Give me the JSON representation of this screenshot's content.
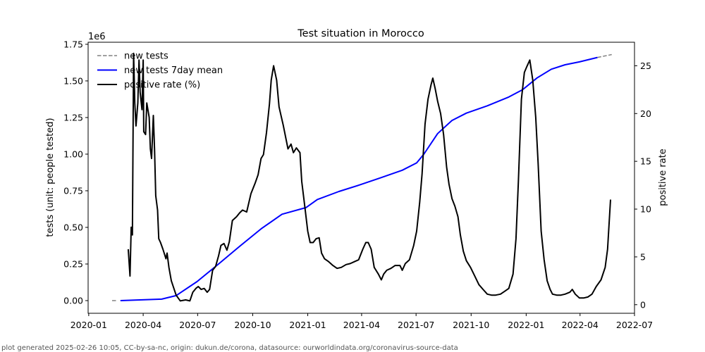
{
  "chart_data": {
    "type": "line",
    "title": "Test situation in Morocco",
    "xlabel": "",
    "ylabel_left": "tests (unit: people tested)",
    "ylabel_right": "positive rate",
    "left_offset_label": "1e6",
    "x_unit": "days since 2020-01-01",
    "xlim_days": [
      -1,
      912
    ],
    "ylim_left": [
      -0.0865,
      1.764
    ],
    "ylim_right": [
      -0.9,
      27.46
    ],
    "x_ticks": [
      {
        "label": "2020-01",
        "day": 0
      },
      {
        "label": "2020-04",
        "day": 91
      },
      {
        "label": "2020-07",
        "day": 182
      },
      {
        "label": "2020-10",
        "day": 274
      },
      {
        "label": "2021-01",
        "day": 366
      },
      {
        "label": "2021-04",
        "day": 456
      },
      {
        "label": "2021-07",
        "day": 547
      },
      {
        "label": "2021-10",
        "day": 639
      },
      {
        "label": "2022-01",
        "day": 731
      },
      {
        "label": "2022-04",
        "day": 821
      },
      {
        "label": "2022-07",
        "day": 912
      }
    ],
    "y_ticks_left": [
      {
        "label": "0.00",
        "value": 0
      },
      {
        "label": "0.25",
        "value": 0.25
      },
      {
        "label": "0.50",
        "value": 0.5
      },
      {
        "label": "0.75",
        "value": 0.75
      },
      {
        "label": "1.00",
        "value": 1.0
      },
      {
        "label": "1.25",
        "value": 1.25
      },
      {
        "label": "1.50",
        "value": 1.5
      },
      {
        "label": "1.75",
        "value": 1.75
      }
    ],
    "y_ticks_right": [
      {
        "label": "0",
        "value": 0
      },
      {
        "label": "5",
        "value": 5
      },
      {
        "label": "10",
        "value": 10
      },
      {
        "label": "15",
        "value": 15
      },
      {
        "label": "20",
        "value": 20
      },
      {
        "label": "25",
        "value": 25
      }
    ],
    "legend_position": "top-left",
    "series": [
      {
        "name": "new tests",
        "axis": "left",
        "color": "#808080",
        "style": "dashed",
        "segments": [
          [
            [
              39,
              0
            ],
            [
              48,
              0
            ]
          ],
          [
            [
              850,
              1.66
            ],
            [
              874,
              1.68
            ]
          ]
        ]
      },
      {
        "name": "new tests 7day mean",
        "axis": "left",
        "color": "#0000ff",
        "style": "solid",
        "points": [
          [
            53,
            0
          ],
          [
            122,
            0.01
          ],
          [
            146,
            0.034
          ],
          [
            181,
            0.13
          ],
          [
            217,
            0.25
          ],
          [
            252,
            0.37
          ],
          [
            288,
            0.49
          ],
          [
            323,
            0.59
          ],
          [
            363,
            0.635
          ],
          [
            382,
            0.69
          ],
          [
            418,
            0.745
          ],
          [
            453,
            0.79
          ],
          [
            489,
            0.84
          ],
          [
            524,
            0.89
          ],
          [
            548,
            0.94
          ],
          [
            560,
            1.0
          ],
          [
            583,
            1.14
          ],
          [
            607,
            1.23
          ],
          [
            631,
            1.28
          ],
          [
            666,
            1.33
          ],
          [
            702,
            1.39
          ],
          [
            725,
            1.44
          ],
          [
            749,
            1.52
          ],
          [
            773,
            1.58
          ],
          [
            796,
            1.61
          ],
          [
            820,
            1.63
          ],
          [
            850,
            1.66
          ]
        ]
      },
      {
        "name": "positive rate (%)",
        "axis": "right",
        "color": "#000000",
        "style": "solid",
        "points": [
          [
            66,
            5.8
          ],
          [
            69,
            3.0
          ],
          [
            71,
            8.1
          ],
          [
            73,
            7.3
          ],
          [
            75,
            26.3
          ],
          [
            77,
            21.1
          ],
          [
            79,
            18.7
          ],
          [
            82,
            21.1
          ],
          [
            84,
            25.6
          ],
          [
            86,
            22.2
          ],
          [
            89,
            20.4
          ],
          [
            91,
            25.6
          ],
          [
            92,
            18.1
          ],
          [
            95,
            17.8
          ],
          [
            97,
            21.1
          ],
          [
            101,
            19.6
          ],
          [
            103,
            16.3
          ],
          [
            105,
            15.3
          ],
          [
            108,
            19.8
          ],
          [
            110,
            16.3
          ],
          [
            112,
            11.4
          ],
          [
            115,
            9.9
          ],
          [
            117,
            6.9
          ],
          [
            120,
            6.5
          ],
          [
            124,
            5.8
          ],
          [
            129,
            4.8
          ],
          [
            131,
            5.4
          ],
          [
            134,
            3.9
          ],
          [
            138,
            2.5
          ],
          [
            146,
            1.0
          ],
          [
            153,
            0.4
          ],
          [
            162,
            0.5
          ],
          [
            169,
            0.4
          ],
          [
            174,
            1.3
          ],
          [
            179,
            1.7
          ],
          [
            183,
            1.9
          ],
          [
            188,
            1.6
          ],
          [
            193,
            1.7
          ],
          [
            198,
            1.3
          ],
          [
            202,
            1.6
          ],
          [
            207,
            3.6
          ],
          [
            212,
            4.0
          ],
          [
            217,
            5.1
          ],
          [
            221,
            6.2
          ],
          [
            226,
            6.4
          ],
          [
            231,
            5.7
          ],
          [
            235,
            6.6
          ],
          [
            240,
            8.8
          ],
          [
            247,
            9.2
          ],
          [
            252,
            9.6
          ],
          [
            257,
            9.9
          ],
          [
            264,
            9.7
          ],
          [
            271,
            11.6
          ],
          [
            278,
            12.7
          ],
          [
            283,
            13.6
          ],
          [
            288,
            15.3
          ],
          [
            292,
            15.7
          ],
          [
            297,
            18
          ],
          [
            302,
            21
          ],
          [
            305,
            23.5
          ],
          [
            309,
            25.0
          ],
          [
            314,
            23.5
          ],
          [
            318,
            20.7
          ],
          [
            325,
            18.8
          ],
          [
            333,
            16.3
          ],
          [
            338,
            16.8
          ],
          [
            342,
            15.9
          ],
          [
            347,
            16.4
          ],
          [
            353,
            15.9
          ],
          [
            356,
            12.9
          ],
          [
            361,
            10.3
          ],
          [
            366,
            7.7
          ],
          [
            370,
            6.5
          ],
          [
            375,
            6.5
          ],
          [
            380,
            6.9
          ],
          [
            385,
            7.0
          ],
          [
            389,
            5.4
          ],
          [
            394,
            4.8
          ],
          [
            401,
            4.5
          ],
          [
            408,
            4.1
          ],
          [
            415,
            3.8
          ],
          [
            422,
            3.9
          ],
          [
            430,
            4.2
          ],
          [
            437,
            4.3
          ],
          [
            444,
            4.5
          ],
          [
            451,
            4.7
          ],
          [
            458,
            5.8
          ],
          [
            463,
            6.5
          ],
          [
            467,
            6.5
          ],
          [
            472,
            5.8
          ],
          [
            477,
            3.9
          ],
          [
            484,
            3.2
          ],
          [
            489,
            2.6
          ],
          [
            493,
            3.2
          ],
          [
            498,
            3.6
          ],
          [
            505,
            3.8
          ],
          [
            512,
            4.1
          ],
          [
            520,
            4.1
          ],
          [
            524,
            3.6
          ],
          [
            529,
            4.3
          ],
          [
            536,
            4.7
          ],
          [
            543,
            6.2
          ],
          [
            548,
            7.7
          ],
          [
            553,
            10.7
          ],
          [
            557,
            13.7
          ],
          [
            562,
            18.9
          ],
          [
            567,
            21.5
          ],
          [
            572,
            23.0
          ],
          [
            575,
            23.7
          ],
          [
            579,
            22.6
          ],
          [
            583,
            21.3
          ],
          [
            588,
            20.0
          ],
          [
            593,
            17.8
          ],
          [
            598,
            14.4
          ],
          [
            602,
            12.6
          ],
          [
            607,
            11.1
          ],
          [
            612,
            10.3
          ],
          [
            617,
            9.2
          ],
          [
            621,
            7.3
          ],
          [
            626,
            5.6
          ],
          [
            631,
            4.6
          ],
          [
            638,
            3.9
          ],
          [
            645,
            3.0
          ],
          [
            652,
            2.1
          ],
          [
            659,
            1.6
          ],
          [
            666,
            1.1
          ],
          [
            673,
            1.0
          ],
          [
            680,
            1.0
          ],
          [
            688,
            1.1
          ],
          [
            695,
            1.4
          ],
          [
            702,
            1.7
          ],
          [
            709,
            3.2
          ],
          [
            714,
            6.9
          ],
          [
            718,
            12.9
          ],
          [
            723,
            21.5
          ],
          [
            728,
            24.3
          ],
          [
            732,
            24.9
          ],
          [
            737,
            25.6
          ],
          [
            742,
            23.5
          ],
          [
            747,
            19.6
          ],
          [
            751,
            14.8
          ],
          [
            756,
            7.7
          ],
          [
            761,
            4.7
          ],
          [
            766,
            2.5
          ],
          [
            771,
            1.6
          ],
          [
            775,
            1.1
          ],
          [
            782,
            1.0
          ],
          [
            789,
            1.0
          ],
          [
            796,
            1.1
          ],
          [
            804,
            1.3
          ],
          [
            808,
            1.6
          ],
          [
            813,
            1.1
          ],
          [
            820,
            0.7
          ],
          [
            827,
            0.7
          ],
          [
            834,
            0.8
          ],
          [
            841,
            1.1
          ],
          [
            848,
            1.9
          ],
          [
            856,
            2.6
          ],
          [
            863,
            3.9
          ],
          [
            867,
            5.8
          ],
          [
            872,
            11.0
          ]
        ]
      }
    ]
  },
  "footer": "plot generated 2025-02-26 10:05, CC-by-sa-nc, origin: dukun.de/corona, datasource: ourworldindata.org/coronavirus-source-data"
}
